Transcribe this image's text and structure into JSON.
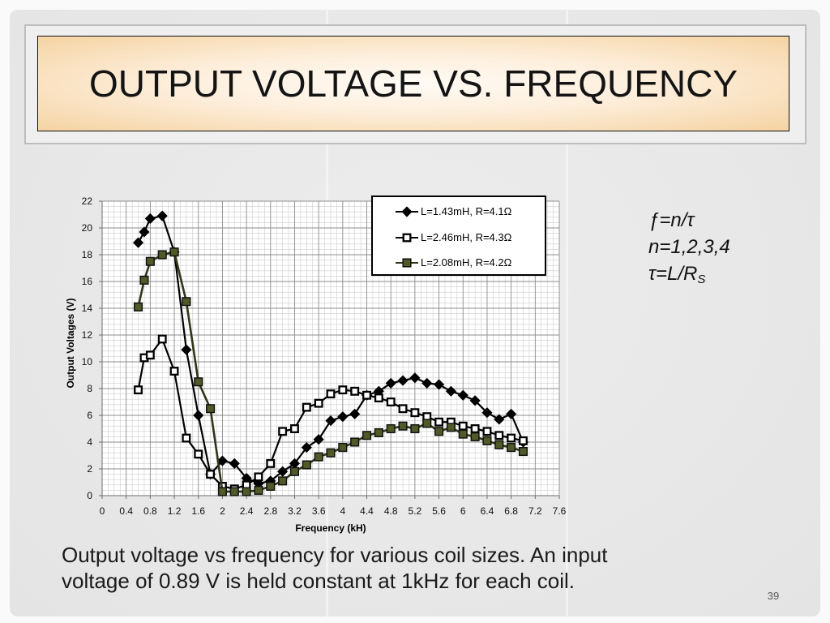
{
  "slide": {
    "title": "OUTPUT VOLTAGE VS. FREQUENCY",
    "formulas": {
      "line1": "ƒ=n/τ",
      "line2": "n=1,2,3,4",
      "line3_main": "τ=L/R",
      "line3_subscript": "S"
    },
    "caption": "Output voltage vs frequency for various coil sizes. An input voltage of 0.89 V is held constant at 1kHz for each coil.",
    "page_number": "39"
  },
  "chart_data": {
    "type": "line",
    "xlabel": "Frequency (kH)",
    "ylabel": "Output Voltages (V)",
    "xlim": [
      0,
      7.6
    ],
    "ylim": [
      0,
      22
    ],
    "x_tick_labels": [
      "0",
      "0.4",
      "0.8",
      "1.2",
      "1.6",
      "2",
      "2.4",
      "2.8",
      "3.2",
      "3.6",
      "4",
      "4.4",
      "4.8",
      "5.2",
      "5.6",
      "6",
      "6.4",
      "6.8",
      "7.2",
      "7.6"
    ],
    "y_ticks": [
      0,
      2,
      4,
      6,
      8,
      10,
      12,
      14,
      16,
      18,
      20,
      22
    ],
    "grid": true,
    "legend_position": "top-right",
    "x": [
      0.6,
      0.7,
      0.8,
      1.0,
      1.2,
      1.4,
      1.6,
      1.8,
      2.0,
      2.2,
      2.4,
      2.6,
      2.8,
      3.0,
      3.2,
      3.4,
      3.6,
      3.8,
      4.0,
      4.2,
      4.4,
      4.6,
      4.8,
      5.0,
      5.2,
      5.4,
      5.6,
      5.8,
      6.0,
      6.2,
      6.4,
      6.6,
      6.8,
      7.0
    ],
    "series": [
      {
        "name": "L=1.43mH, R=4.1Ω",
        "marker": "diamond",
        "line_color": "#000000",
        "marker_fill": "#000000",
        "marker_stroke": "#000000",
        "values": [
          18.9,
          19.7,
          20.7,
          20.9,
          18.2,
          10.9,
          6.0,
          1.6,
          2.6,
          2.4,
          1.3,
          0.9,
          1.1,
          1.8,
          2.4,
          3.6,
          4.2,
          5.6,
          5.9,
          6.1,
          7.5,
          7.8,
          8.4,
          8.6,
          8.8,
          8.4,
          8.3,
          7.8,
          7.5,
          7.1,
          6.2,
          5.7,
          6.1,
          4.0
        ]
      },
      {
        "name": "L=2.46mH, R=4.3Ω",
        "marker": "square",
        "line_color": "#000000",
        "marker_fill": "#ffffff",
        "marker_stroke": "#000000",
        "values": [
          7.9,
          10.3,
          10.5,
          11.7,
          9.3,
          4.3,
          3.1,
          1.6,
          0.7,
          0.5,
          0.8,
          1.4,
          2.4,
          4.8,
          5.0,
          6.6,
          6.9,
          7.6,
          7.9,
          7.8,
          7.5,
          7.3,
          7.0,
          6.5,
          6.2,
          5.9,
          5.5,
          5.5,
          5.2,
          5.0,
          4.8,
          4.5,
          4.3,
          4.1
        ]
      },
      {
        "name": "L=2.08mH, R=4.2Ω",
        "marker": "square",
        "line_color": "#2f3519",
        "marker_fill": "#4f5a29",
        "marker_stroke": "#111111",
        "values": [
          14.1,
          16.1,
          17.5,
          18.0,
          18.2,
          14.5,
          8.5,
          6.5,
          0.3,
          0.3,
          0.3,
          0.4,
          0.7,
          1.1,
          1.8,
          2.3,
          2.9,
          3.2,
          3.6,
          4.0,
          4.5,
          4.7,
          5.0,
          5.2,
          5.0,
          5.4,
          4.8,
          5.1,
          4.6,
          4.4,
          4.1,
          3.8,
          3.6,
          3.3
        ]
      }
    ]
  }
}
